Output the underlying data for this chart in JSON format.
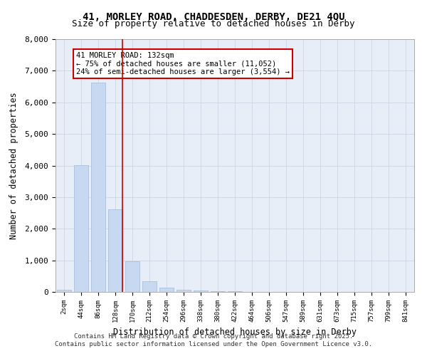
{
  "title_line1": "41, MORLEY ROAD, CHADDESDEN, DERBY, DE21 4QU",
  "title_line2": "Size of property relative to detached houses in Derby",
  "xlabel": "Distribution of detached houses by size in Derby",
  "ylabel": "Number of detached properties",
  "categories": [
    "2sqm",
    "44sqm",
    "86sqm",
    "128sqm",
    "170sqm",
    "212sqm",
    "254sqm",
    "296sqm",
    "338sqm",
    "380sqm",
    "422sqm",
    "464sqm",
    "506sqm",
    "547sqm",
    "589sqm",
    "631sqm",
    "673sqm",
    "715sqm",
    "757sqm",
    "799sqm",
    "841sqm"
  ],
  "values": [
    60,
    4020,
    6620,
    2620,
    960,
    340,
    130,
    70,
    50,
    30,
    20,
    10,
    5,
    3,
    2,
    1,
    1,
    0,
    0,
    0,
    0
  ],
  "bar_color": "#c7d9f0",
  "bar_edgecolor": "#a0b8d8",
  "vline_x": 3,
  "vline_color": "#cc0000",
  "annotation_title": "41 MORLEY ROAD: 132sqm",
  "annotation_line2": "← 75% of detached houses are smaller (11,052)",
  "annotation_line3": "24% of semi-detached houses are larger (3,554) →",
  "annotation_box_color": "#cc0000",
  "annotation_bg": "#ffffff",
  "ylim": [
    0,
    8000
  ],
  "yticks": [
    0,
    1000,
    2000,
    3000,
    4000,
    5000,
    6000,
    7000,
    8000
  ],
  "grid_color": "#d0d8e8",
  "bg_color": "#e8eef8",
  "footer_line1": "Contains HM Land Registry data © Crown copyright and database right 2025.",
  "footer_line2": "Contains public sector information licensed under the Open Government Licence v3.0."
}
